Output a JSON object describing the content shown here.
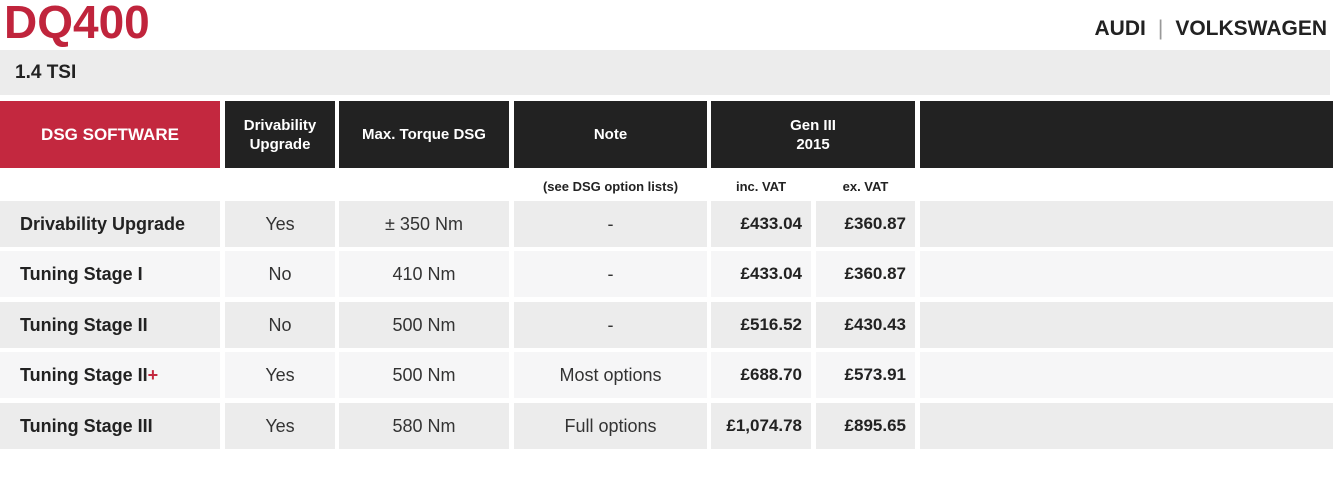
{
  "header": {
    "title": "DQ400",
    "brand_left": "AUDI",
    "brand_sep": "|",
    "brand_right": "VOLKSWAGEN"
  },
  "subheader": {
    "engine": "1.4 TSI"
  },
  "table": {
    "columns": {
      "software": "DSG SOFTWARE",
      "drivability": "Drivability Upgrade",
      "torque": "Max. Torque DSG",
      "note": "Note",
      "gen_line1": "Gen III",
      "gen_line2": "2015",
      "extra": ""
    },
    "subheaders": {
      "note": "(see DSG option lists)",
      "inc_vat": "inc. VAT",
      "ex_vat": "ex. VAT"
    },
    "rows": [
      {
        "name": "Drivability Upgrade",
        "name_suffix": "",
        "drivability": "Yes",
        "torque": "± 350 Nm",
        "note": "-",
        "inc_vat": "£433.04",
        "ex_vat": "£360.87"
      },
      {
        "name": "Tuning Stage I",
        "name_suffix": "",
        "drivability": "No",
        "torque": "410 Nm",
        "note": "-",
        "inc_vat": "£433.04",
        "ex_vat": "£360.87"
      },
      {
        "name": "Tuning Stage II",
        "name_suffix": "",
        "drivability": "No",
        "torque": "500 Nm",
        "note": "-",
        "inc_vat": "£516.52",
        "ex_vat": "£430.43"
      },
      {
        "name": "Tuning Stage II",
        "name_suffix": "+",
        "drivability": "Yes",
        "torque": "500 Nm",
        "note": "Most options",
        "inc_vat": "£688.70",
        "ex_vat": "£573.91"
      },
      {
        "name": "Tuning Stage III",
        "name_suffix": "",
        "drivability": "Yes",
        "torque": "580 Nm",
        "note": "Full options",
        "inc_vat": "£1,074.78",
        "ex_vat": "£895.65"
      }
    ]
  },
  "colors": {
    "accent_red": "#c3283f",
    "header_dark": "#222222",
    "row_light": "#ececec",
    "row_lighter": "#f6f6f7"
  }
}
